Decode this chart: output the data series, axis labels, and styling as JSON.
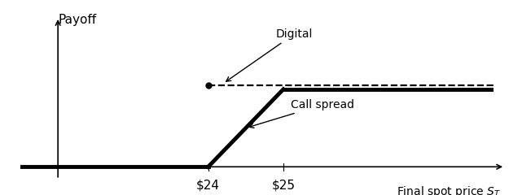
{
  "xlim": [
    21.5,
    27.8
  ],
  "ylim": [
    -0.25,
    1.5
  ],
  "xtick_positions": [
    24,
    25
  ],
  "xtick_labels": [
    "$24",
    "$25"
  ],
  "digital_y": 0.72,
  "call_max_y": 0.68,
  "call_flat_y": -0.12,
  "digital_flat_y": -0.12,
  "strike1": 24,
  "strike2": 25,
  "call_color": "#000000",
  "digital_color": "#000000",
  "call_linewidth": 3.5,
  "digital_linewidth": 1.6,
  "annotation_digital": "Digital",
  "annotation_call": "Call spread",
  "xlabel": "Final spot price $S_T$",
  "ylabel": "Payoff",
  "figsize": [
    6.25,
    2.4
  ],
  "dpi": 100,
  "x_axis_y": -0.12,
  "yaxis_x": 22.0
}
